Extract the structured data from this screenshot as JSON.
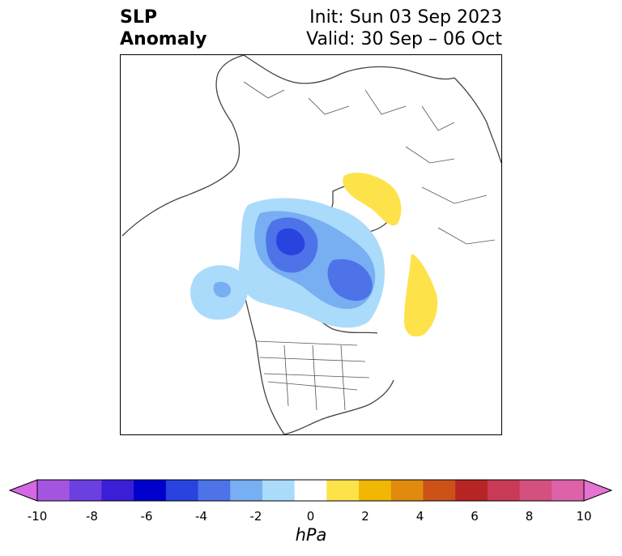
{
  "header": {
    "field_line1": "SLP",
    "field_line2": "Anomaly",
    "init_line": "Init: Sun 03 Sep 2023",
    "valid_line": "Valid: 30 Sep – 06 Oct"
  },
  "map": {
    "projection": "north-polar-stereographic",
    "region": "North America / Arctic / North Atlantic",
    "features": [
      {
        "sign": "negative",
        "location": "Beaufort Sea / Alaska",
        "min_hPa": -5
      },
      {
        "sign": "negative",
        "location": "Greenland / Baffin Bay",
        "min_hPa": -4
      },
      {
        "sign": "negative",
        "location": "North Pacific off Alaska",
        "min_hPa": -3
      },
      {
        "sign": "positive",
        "location": "Kara Sea / NW Siberia",
        "max_hPa": 2
      },
      {
        "sign": "positive",
        "location": "North Atlantic",
        "max_hPa": 2
      }
    ]
  },
  "colorbar": {
    "unit": "hPa",
    "ticks": [
      "-10",
      "-8",
      "-6",
      "-4",
      "-2",
      "0",
      "2",
      "4",
      "6",
      "8",
      "10"
    ],
    "extend": "both",
    "colors": [
      "#d567e6",
      "#a355e0",
      "#6b3fe0",
      "#3b1fd6",
      "#0000cc",
      "#2843df",
      "#4e73e8",
      "#78aef2",
      "#abdbfb",
      "#ffffff",
      "#fee24a",
      "#f2b705",
      "#e08a0e",
      "#cc5218",
      "#b72424",
      "#c83a55",
      "#d3507f",
      "#dd62a7",
      "#e672d2"
    ]
  }
}
